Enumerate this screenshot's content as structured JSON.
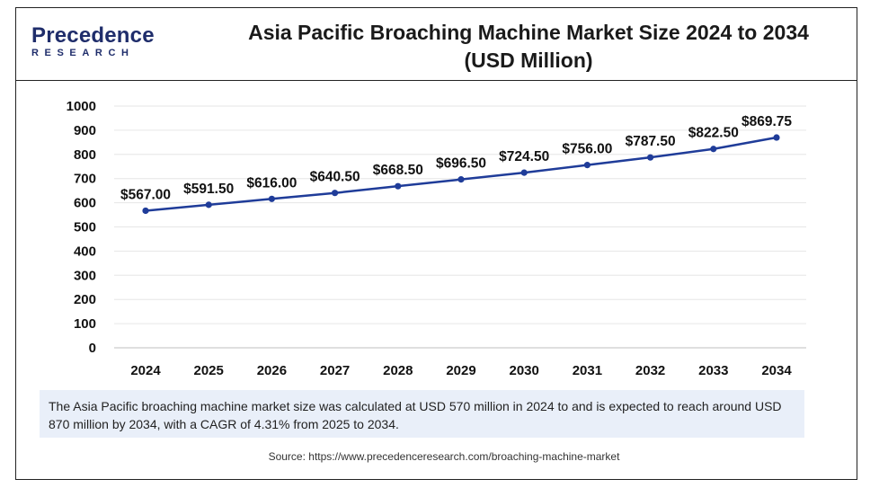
{
  "logo": {
    "main": "Precedence",
    "sub": "RESEARCH"
  },
  "title_line1": "Asia Pacific Broaching Machine Market Size 2024 to 2034",
  "title_line2": "(USD Million)",
  "description": "The Asia Pacific  broaching machine market size was calculated at USD 570 million in 2024 to and is expected to reach around USD 870 million by 2034, with a CAGR of 4.31% from 2025 to 2034.",
  "source": "Source: https://www.precedenceresearch.com/broaching-machine-market",
  "colors": {
    "line": "#1f3c99",
    "marker": "#1f3c99",
    "brand": "#1f2d6b",
    "desc_bg": "#e9eff9"
  },
  "chart_data": {
    "type": "line",
    "x": [
      "2024",
      "2025",
      "2026",
      "2027",
      "2028",
      "2029",
      "2030",
      "2031",
      "2032",
      "2033",
      "2034"
    ],
    "series": [
      {
        "values": [
          567.0,
          591.5,
          616.0,
          640.5,
          668.5,
          696.5,
          724.5,
          756.0,
          787.5,
          822.5,
          869.75
        ],
        "labels": [
          "$567.00",
          "$591.50",
          "$616.00",
          "$640.50",
          "$668.50",
          "$696.50",
          "$724.50",
          "$756.00",
          "$787.50",
          "$822.50",
          "$869.75"
        ]
      }
    ],
    "yticks": [
      "0",
      "100",
      "200",
      "300",
      "400",
      "500",
      "600",
      "700",
      "800",
      "900",
      "1000"
    ],
    "ylim": [
      0,
      1000
    ],
    "grid": "horizontal",
    "legend": "none"
  }
}
